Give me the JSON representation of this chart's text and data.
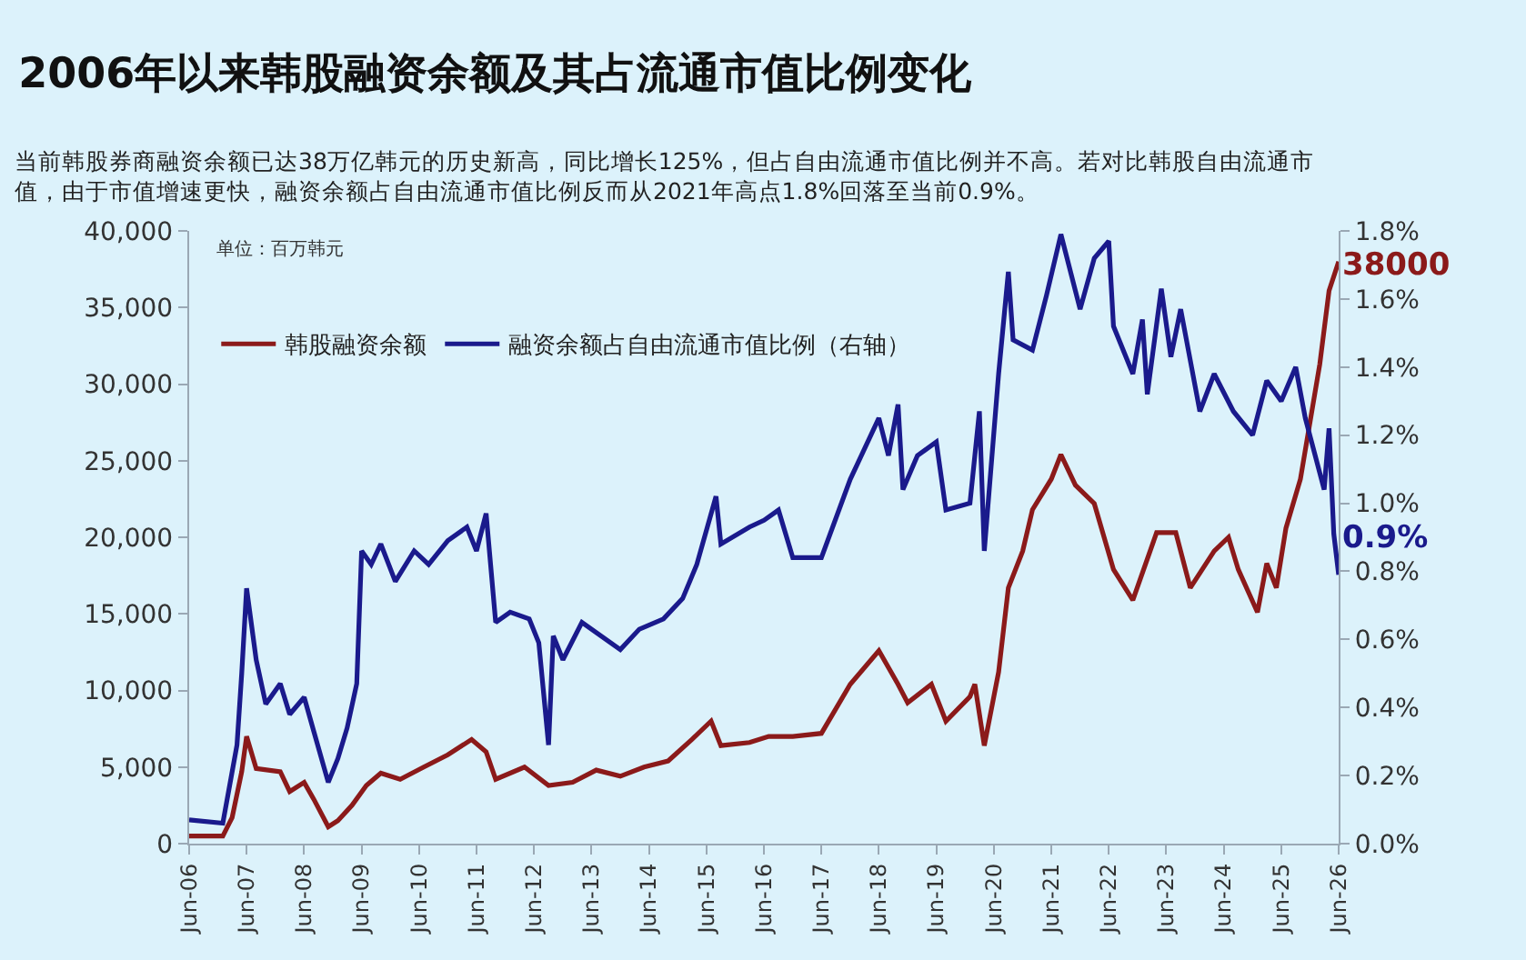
{
  "chart_data": {
    "type": "line",
    "title": "2006年以来韩股融资余额及其占流通市值比例变化",
    "subtitle": "当前韩股券商融资余额已达38万亿韩元的历史新高，同比增长125%，但占自由流通市值比例并不高。若对比韩股自由流通市值，由于市值增速更快，融资余额占自由流通市值比例反而从2021年高点1.8%回落至当前0.9%。",
    "annotations": [
      "单位：百万韩元",
      "38000",
      "0.9%"
    ],
    "series": [
      {
        "name": "韩股融资余额",
        "color": "#8b1a1a",
        "axis": "y",
        "x": [
          "2006-06",
          "2007-01",
          "2007-03",
          "2007-05",
          "2007-06",
          "2007-08",
          "2008-01",
          "2008-03",
          "2008-06",
          "2008-08",
          "2008-11",
          "2009-01",
          "2009-04",
          "2009-07",
          "2009-10",
          "2010-02",
          "2010-07",
          "2010-12",
          "2011-05",
          "2011-08",
          "2011-10",
          "2012-04",
          "2012-09",
          "2013-02",
          "2013-07",
          "2013-12",
          "2014-05",
          "2014-10",
          "2015-03",
          "2015-07",
          "2015-09",
          "2016-03",
          "2016-07",
          "2016-12",
          "2017-06",
          "2017-12",
          "2018-06",
          "2018-10",
          "2018-12",
          "2019-05",
          "2019-08",
          "2020-01",
          "2020-02",
          "2020-04",
          "2020-07",
          "2020-09",
          "2020-12",
          "2021-02",
          "2021-06",
          "2021-08",
          "2021-11",
          "2022-03",
          "2022-07",
          "2022-11",
          "2023-04",
          "2023-08",
          "2023-11",
          "2024-04",
          "2024-07",
          "2024-09",
          "2025-01",
          "2025-03",
          "2025-05",
          "2025-07",
          "2025-10",
          "2026-02",
          "2026-04",
          "2026-06"
        ],
        "values": [
          500,
          500,
          1700,
          4700,
          7000,
          4900,
          4700,
          3400,
          4000,
          2900,
          1100,
          1500,
          2500,
          3800,
          4600,
          4200,
          5000,
          5800,
          6800,
          6000,
          4200,
          5000,
          3800,
          4000,
          4800,
          4400,
          5000,
          5400,
          6800,
          8000,
          6400,
          6600,
          7000,
          7000,
          7200,
          10400,
          12600,
          10400,
          9200,
          10400,
          8000,
          9600,
          10400,
          6400,
          11200,
          16700,
          19100,
          21800,
          23800,
          25400,
          23400,
          22200,
          17900,
          15900,
          20300,
          20300,
          16700,
          19100,
          20000,
          17900,
          15100,
          18300,
          16700,
          20600,
          23800,
          31300,
          36100,
          38000
        ]
      },
      {
        "name": "融资余额占自由流通市值比例（右轴）",
        "color": "#1a1a8c",
        "axis": "y2",
        "x": [
          "2006-06",
          "2007-01",
          "2007-04",
          "2007-05",
          "2007-06",
          "2007-08",
          "2007-10",
          "2008-01",
          "2008-03",
          "2008-06",
          "2008-08",
          "2008-11",
          "2009-01",
          "2009-03",
          "2009-05",
          "2009-06",
          "2009-08",
          "2009-10",
          "2010-01",
          "2010-05",
          "2010-08",
          "2010-12",
          "2011-04",
          "2011-06",
          "2011-08",
          "2011-10",
          "2012-01",
          "2012-05",
          "2012-07",
          "2012-09",
          "2012-10",
          "2012-12",
          "2013-04",
          "2013-08",
          "2013-12",
          "2014-04",
          "2014-09",
          "2015-01",
          "2015-04",
          "2015-08",
          "2015-09",
          "2016-03",
          "2016-06",
          "2016-09",
          "2016-12",
          "2017-06",
          "2017-12",
          "2018-06",
          "2018-08",
          "2018-10",
          "2018-11",
          "2019-02",
          "2019-06",
          "2019-08",
          "2020-01",
          "2020-03",
          "2020-04",
          "2020-07",
          "2020-09",
          "2020-10",
          "2021-02",
          "2021-05",
          "2021-08",
          "2021-12",
          "2022-03",
          "2022-06",
          "2022-07",
          "2022-11",
          "2023-01",
          "2023-02",
          "2023-05",
          "2023-07",
          "2023-09",
          "2024-01",
          "2024-04",
          "2024-08",
          "2024-12",
          "2025-03",
          "2025-06",
          "2025-09",
          "2025-11",
          "2026-03",
          "2026-04",
          "2026-05",
          "2026-06"
        ],
        "values": [
          0.07,
          0.06,
          0.29,
          0.5,
          0.75,
          0.54,
          0.41,
          0.47,
          0.38,
          0.43,
          0.33,
          0.18,
          0.25,
          0.34,
          0.47,
          0.86,
          0.82,
          0.88,
          0.77,
          0.86,
          0.82,
          0.89,
          0.93,
          0.86,
          0.97,
          0.65,
          0.68,
          0.66,
          0.59,
          0.29,
          0.61,
          0.54,
          0.65,
          0.61,
          0.57,
          0.63,
          0.66,
          0.72,
          0.82,
          1.02,
          0.88,
          0.93,
          0.95,
          0.98,
          0.84,
          0.84,
          1.07,
          1.25,
          1.14,
          1.29,
          1.04,
          1.14,
          1.18,
          0.98,
          1.0,
          1.27,
          0.86,
          1.38,
          1.68,
          1.48,
          1.45,
          1.61,
          1.79,
          1.57,
          1.72,
          1.77,
          1.52,
          1.38,
          1.54,
          1.32,
          1.63,
          1.43,
          1.57,
          1.27,
          1.38,
          1.27,
          1.2,
          1.36,
          1.3,
          1.4,
          1.25,
          1.04,
          1.22,
          0.91,
          0.79
        ]
      }
    ],
    "xlim": [
      "2006-06",
      "2026-06"
    ],
    "xticks": [
      {
        "value": "2006-06",
        "label": "Jun-06"
      },
      {
        "value": "2007-06",
        "label": "Jun-07"
      },
      {
        "value": "2008-06",
        "label": "Jun-08"
      },
      {
        "value": "2009-06",
        "label": "Jun-09"
      },
      {
        "value": "2010-06",
        "label": "Jun-10"
      },
      {
        "value": "2011-06",
        "label": "Jun-11"
      },
      {
        "value": "2012-06",
        "label": "Jun-12"
      },
      {
        "value": "2013-06",
        "label": "Jun-13"
      },
      {
        "value": "2014-06",
        "label": "Jun-14"
      },
      {
        "value": "2015-06",
        "label": "Jun-15"
      },
      {
        "value": "2016-06",
        "label": "Jun-16"
      },
      {
        "value": "2017-06",
        "label": "Jun-17"
      },
      {
        "value": "2018-06",
        "label": "Jun-18"
      },
      {
        "value": "2019-06",
        "label": "Jun-19"
      },
      {
        "value": "2020-06",
        "label": "Jun-20"
      },
      {
        "value": "2021-06",
        "label": "Jun-21"
      },
      {
        "value": "2022-06",
        "label": "Jun-22"
      },
      {
        "value": "2023-06",
        "label": "Jun-23"
      },
      {
        "value": "2024-06",
        "label": "Jun-24"
      },
      {
        "value": "2025-06",
        "label": "Jun-25"
      },
      {
        "value": "2026-06",
        "label": "Jun-26"
      }
    ],
    "ylim": [
      0,
      40000
    ],
    "yticks": [
      0,
      {
        "value": 5000,
        "label": "5,000"
      },
      {
        "value": 10000,
        "label": "10,000"
      },
      {
        "value": 15000,
        "label": "15,000"
      },
      {
        "value": 20000,
        "label": "20,000"
      },
      {
        "value": 25000,
        "label": "25,000"
      },
      {
        "value": 30000,
        "label": "30,000"
      },
      {
        "value": 35000,
        "label": "35,000"
      },
      {
        "value": 40000,
        "label": "40,000"
      }
    ],
    "y2lim": [
      0,
      1.8
    ],
    "y2ticks": [
      {
        "value": 0,
        "label": "0.0%"
      },
      {
        "value": 0.2,
        "label": "0.2%"
      },
      {
        "value": 0.4,
        "label": "0.4%"
      },
      {
        "value": 0.6,
        "label": "0.6%"
      },
      {
        "value": 0.8,
        "label": "0.8%"
      },
      {
        "value": 1.0,
        "label": "1.0%"
      },
      {
        "value": 1.2,
        "label": "1.2%"
      },
      {
        "value": 1.4,
        "label": "1.4%"
      },
      {
        "value": 1.6,
        "label": "1.6%"
      },
      {
        "value": 1.8,
        "label": "1.8%"
      }
    ],
    "grid": false,
    "legend": "top left",
    "marker": "none",
    "line_style": "solid"
  }
}
